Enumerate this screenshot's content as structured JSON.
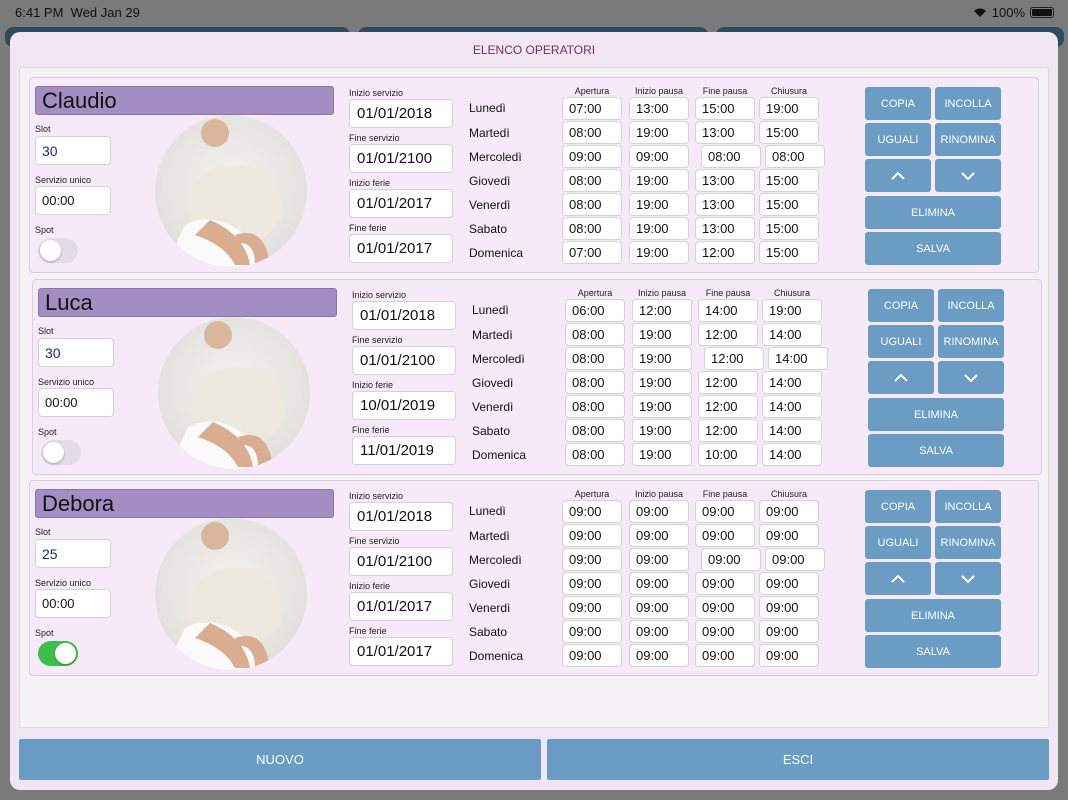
{
  "status_bar": {
    "time": "6:41 PM",
    "date": "Wed Jan 29",
    "battery": "100%"
  },
  "title": "ELENCO OPERATORI",
  "labels": {
    "slot": "Slot",
    "servizio_unico": "Servizio unico",
    "spot": "Spot",
    "inizio_servizio": "Inizio servizio",
    "fine_servizio": "Fine servizio",
    "inizio_ferie": "Inizio ferie",
    "fine_ferie": "Fine ferie"
  },
  "columns": [
    "Apertura",
    "Inizio pausa",
    "Fine pausa",
    "Chiusura"
  ],
  "days": [
    "Lunedì",
    "Martedì",
    "Mercoledì",
    "Giovedì",
    "Venerdì",
    "Sabato",
    "Domenica"
  ],
  "buttons": {
    "copia": "COPIA",
    "incolla": "INCOLLA",
    "uguali": "UGUALI",
    "rinomina": "RINOMINA",
    "elimina": "ELIMINA",
    "salva": "SALVA",
    "nuovo": "NUOVO",
    "esci": "ESCI"
  },
  "icons": {
    "up": "chevron-up-icon",
    "down": "chevron-down-icon",
    "wifi": "wifi-icon",
    "battery": "battery-icon"
  },
  "operators": [
    {
      "name": "Claudio",
      "slot": "30",
      "servizio_unico": "00:00",
      "spot": false,
      "inizio_servizio": "01/01/2018",
      "fine_servizio": "01/01/2100",
      "inizio_ferie": "01/01/2017",
      "fine_ferie": "01/01/2017",
      "schedule": [
        [
          "07:00",
          "13:00",
          "15:00",
          "19:00"
        ],
        [
          "08:00",
          "19:00",
          "13:00",
          "15:00"
        ],
        [
          "09:00",
          "09:00",
          "08:00",
          "08:00"
        ],
        [
          "08:00",
          "19:00",
          "13:00",
          "15:00"
        ],
        [
          "08:00",
          "19:00",
          "13:00",
          "15:00"
        ],
        [
          "08:00",
          "19:00",
          "13:00",
          "15:00"
        ],
        [
          "07:00",
          "19:00",
          "12:00",
          "15:00"
        ]
      ]
    },
    {
      "name": "Luca",
      "slot": "30",
      "servizio_unico": "00:00",
      "spot": false,
      "inizio_servizio": "01/01/2018",
      "fine_servizio": "01/01/2100",
      "inizio_ferie": "10/01/2019",
      "fine_ferie": "11/01/2019",
      "schedule": [
        [
          "06:00",
          "12:00",
          "14:00",
          "19:00"
        ],
        [
          "08:00",
          "19:00",
          "12:00",
          "14:00"
        ],
        [
          "08:00",
          "19:00",
          "12:00",
          "14:00"
        ],
        [
          "08:00",
          "19:00",
          "12:00",
          "14:00"
        ],
        [
          "08:00",
          "19:00",
          "12:00",
          "14:00"
        ],
        [
          "08:00",
          "19:00",
          "12:00",
          "14:00"
        ],
        [
          "08:00",
          "19:00",
          "10:00",
          "14:00"
        ]
      ]
    },
    {
      "name": "Debora",
      "slot": "25",
      "servizio_unico": "00:00",
      "spot": true,
      "inizio_servizio": "01/01/2018",
      "fine_servizio": "01/01/2100",
      "inizio_ferie": "01/01/2017",
      "fine_ferie": "01/01/2017",
      "schedule": [
        [
          "09:00",
          "09:00",
          "09:00",
          "09:00"
        ],
        [
          "09:00",
          "09:00",
          "09:00",
          "09:00"
        ],
        [
          "09:00",
          "09:00",
          "09:00",
          "09:00"
        ],
        [
          "09:00",
          "09:00",
          "09:00",
          "09:00"
        ],
        [
          "09:00",
          "09:00",
          "09:00",
          "09:00"
        ],
        [
          "09:00",
          "09:00",
          "09:00",
          "09:00"
        ],
        [
          "09:00",
          "09:00",
          "09:00",
          "09:00"
        ]
      ]
    }
  ]
}
